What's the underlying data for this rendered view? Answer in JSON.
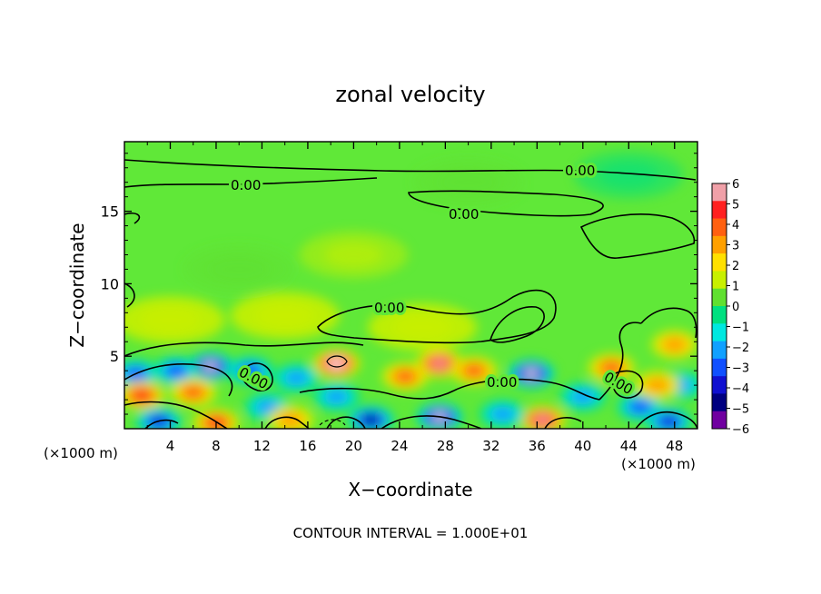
{
  "chart_data": {
    "type": "heatmap",
    "title": "zonal velocity",
    "xlabel": "X−coordinate",
    "ylabel": "Z−coordinate",
    "x_unit": "(×1000 m)",
    "x_unit_right": "(×1000 m)",
    "footer": "CONTOUR INTERVAL = 1.000E+01",
    "xlim": [
      0,
      50
    ],
    "ylim": [
      0,
      19.8
    ],
    "x_ticks": [
      4,
      8,
      12,
      16,
      20,
      24,
      28,
      32,
      36,
      40,
      44,
      48
    ],
    "x_tick_labels": [
      "4",
      "8",
      "12",
      "16",
      "20",
      "24",
      "28",
      "32",
      "36",
      "40",
      "44",
      "48"
    ],
    "y_ticks": [
      5,
      10,
      15
    ],
    "y_tick_labels": [
      "5",
      "10",
      "15"
    ],
    "colorbar": {
      "range": [
        -6,
        6
      ],
      "tick_labels": [
        "6",
        "5",
        "4",
        "3",
        "2",
        "1",
        "0",
        "−1",
        "−2",
        "−3",
        "−4",
        "−5",
        "−6"
      ],
      "colors": [
        "#f0a0a8",
        "#ff2020",
        "#ff6010",
        "#ffa000",
        "#ffe000",
        "#c8f000",
        "#60e030",
        "#00e080",
        "#00e8e0",
        "#10a0ff",
        "#1050ff",
        "#1010d0",
        "#000080",
        "#7000a0"
      ]
    },
    "contour_labels": [
      "0.00",
      "0.00",
      "0.00",
      "0.00",
      "0.00",
      "0.00",
      "0.00"
    ],
    "field_background": "#60e838",
    "blobs": [
      {
        "x": 18.5,
        "z": 4.5,
        "v": 7
      },
      {
        "x": 18.5,
        "z": 2.2,
        "v": -3
      },
      {
        "x": 21.5,
        "z": 0.6,
        "v": -6
      },
      {
        "x": 27.5,
        "z": 0.8,
        "v": -7
      },
      {
        "x": 27.5,
        "z": 4.5,
        "v": 6
      },
      {
        "x": 24.5,
        "z": 3.6,
        "v": 4
      },
      {
        "x": 30.5,
        "z": 4.0,
        "v": 4
      },
      {
        "x": 7.5,
        "z": 4.3,
        "v": -7
      },
      {
        "x": 4.5,
        "z": 4.0,
        "v": -4
      },
      {
        "x": 11.0,
        "z": 4.0,
        "v": -4
      },
      {
        "x": 15.0,
        "z": 3.5,
        "v": -3
      },
      {
        "x": 1.0,
        "z": 3.8,
        "v": -4
      },
      {
        "x": 1.5,
        "z": 2.3,
        "v": 5
      },
      {
        "x": 6.0,
        "z": 2.5,
        "v": 4
      },
      {
        "x": 8.0,
        "z": 0.4,
        "v": 5
      },
      {
        "x": 3.0,
        "z": 0.5,
        "v": -5
      },
      {
        "x": 12.5,
        "z": 1.5,
        "v": -3
      },
      {
        "x": 14.5,
        "z": 0.6,
        "v": 3
      },
      {
        "x": 35.5,
        "z": 3.8,
        "v": -7
      },
      {
        "x": 36.5,
        "z": 0.6,
        "v": 6
      },
      {
        "x": 33.0,
        "z": 1.0,
        "v": -3
      },
      {
        "x": 40.0,
        "z": 2.2,
        "v": -3
      },
      {
        "x": 42.5,
        "z": 4.2,
        "v": 4
      },
      {
        "x": 45.0,
        "z": 1.5,
        "v": -4
      },
      {
        "x": 47.5,
        "z": 0.5,
        "v": -5
      },
      {
        "x": 48.0,
        "z": 5.8,
        "v": 3
      },
      {
        "x": 48.5,
        "z": 3.0,
        "v": -3
      },
      {
        "x": 46.5,
        "z": 3.0,
        "v": 3
      },
      {
        "x": 4.0,
        "z": 7.5,
        "v": 1
      },
      {
        "x": 14.0,
        "z": 7.8,
        "v": 1
      },
      {
        "x": 26.0,
        "z": 7.0,
        "v": 1
      },
      {
        "x": 20.0,
        "z": 12.0,
        "v": 0.6
      },
      {
        "x": 30.0,
        "z": 17.0,
        "v": 0.5
      },
      {
        "x": 44.0,
        "z": 17.5,
        "v": -0.5
      },
      {
        "x": 10.0,
        "z": 11.0,
        "v": 0.5
      }
    ]
  }
}
